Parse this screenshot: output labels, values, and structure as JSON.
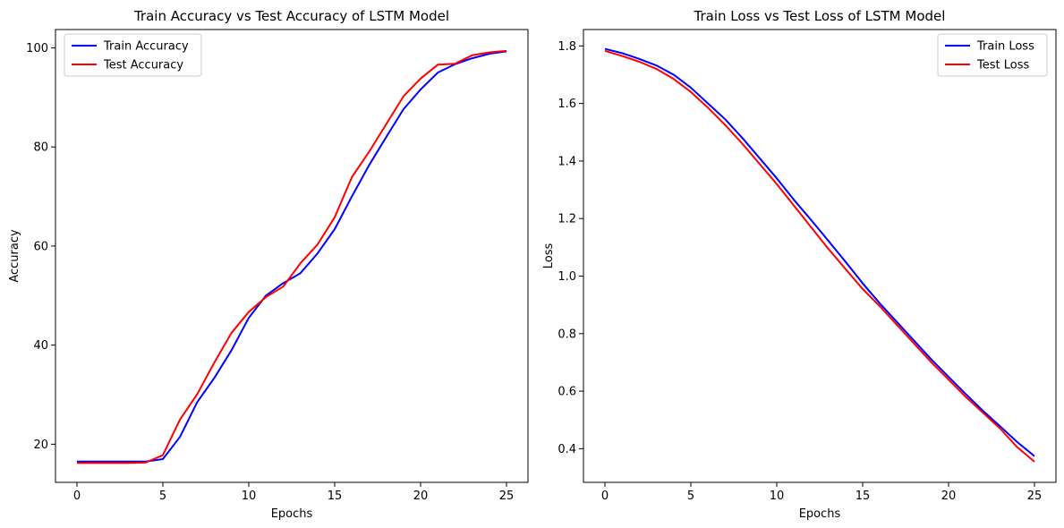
{
  "chart_data": [
    {
      "type": "line",
      "title": "Train Accuracy vs Test Accuracy of LSTM Model",
      "xlabel": "Epochs",
      "ylabel": "Accuracy",
      "xlim": [
        -1.25,
        26.25
      ],
      "ylim": [
        12.3,
        103.7
      ],
      "xticks": [
        0,
        5,
        10,
        15,
        20,
        25
      ],
      "yticks": [
        20,
        40,
        60,
        80,
        100
      ],
      "legend_position": "top-left",
      "x": [
        0,
        1,
        2,
        3,
        4,
        5,
        6,
        7,
        8,
        9,
        10,
        11,
        12,
        13,
        14,
        15,
        16,
        17,
        18,
        19,
        20,
        21,
        22,
        23,
        24,
        25
      ],
      "series": [
        {
          "name": "Train Accuracy",
          "color": "#0000ff",
          "values": [
            16.5,
            16.5,
            16.5,
            16.5,
            16.5,
            17.0,
            21.5,
            28.5,
            33.4,
            39.0,
            45.5,
            50.0,
            52.5,
            54.5,
            58.5,
            63.4,
            70.0,
            76.3,
            82.0,
            87.6,
            91.6,
            95.0,
            96.7,
            97.9,
            98.8,
            99.3
          ]
        },
        {
          "name": "Test Accuracy",
          "color": "#ff0000",
          "values": [
            16.2,
            16.2,
            16.2,
            16.2,
            16.3,
            17.8,
            25.0,
            30.1,
            36.5,
            42.5,
            46.7,
            49.7,
            51.8,
            56.5,
            60.3,
            65.8,
            73.9,
            79.0,
            84.6,
            90.2,
            93.8,
            96.6,
            96.8,
            98.5,
            99.1,
            99.4
          ]
        }
      ]
    },
    {
      "type": "line",
      "title": "Train Loss vs Test Loss of LSTM Model",
      "xlabel": "Epochs",
      "ylabel": "Loss",
      "xlim": [
        -1.25,
        26.25
      ],
      "ylim": [
        0.283,
        1.857
      ],
      "xticks": [
        0,
        5,
        10,
        15,
        20,
        25
      ],
      "yticks": [
        0.4,
        0.6,
        0.8,
        1.0,
        1.2,
        1.4,
        1.6,
        1.8
      ],
      "legend_position": "top-right",
      "x": [
        0,
        1,
        2,
        3,
        4,
        5,
        6,
        7,
        8,
        9,
        10,
        11,
        12,
        13,
        14,
        15,
        16,
        17,
        18,
        19,
        20,
        21,
        22,
        23,
        24,
        25
      ],
      "series": [
        {
          "name": "Train Loss",
          "color": "#0000ff",
          "values": [
            1.79,
            1.775,
            1.755,
            1.732,
            1.7,
            1.655,
            1.6,
            1.545,
            1.48,
            1.41,
            1.34,
            1.265,
            1.195,
            1.123,
            1.05,
            0.975,
            0.905,
            0.84,
            0.775,
            0.71,
            0.65,
            0.59,
            0.532,
            0.478,
            0.423,
            0.374
          ]
        },
        {
          "name": "Test Loss",
          "color": "#ff0000",
          "values": [
            1.783,
            1.765,
            1.745,
            1.72,
            1.685,
            1.64,
            1.585,
            1.525,
            1.46,
            1.39,
            1.32,
            1.245,
            1.17,
            1.095,
            1.025,
            0.955,
            0.895,
            0.83,
            0.765,
            0.7,
            0.64,
            0.58,
            0.525,
            0.47,
            0.405,
            0.355
          ]
        }
      ]
    }
  ]
}
